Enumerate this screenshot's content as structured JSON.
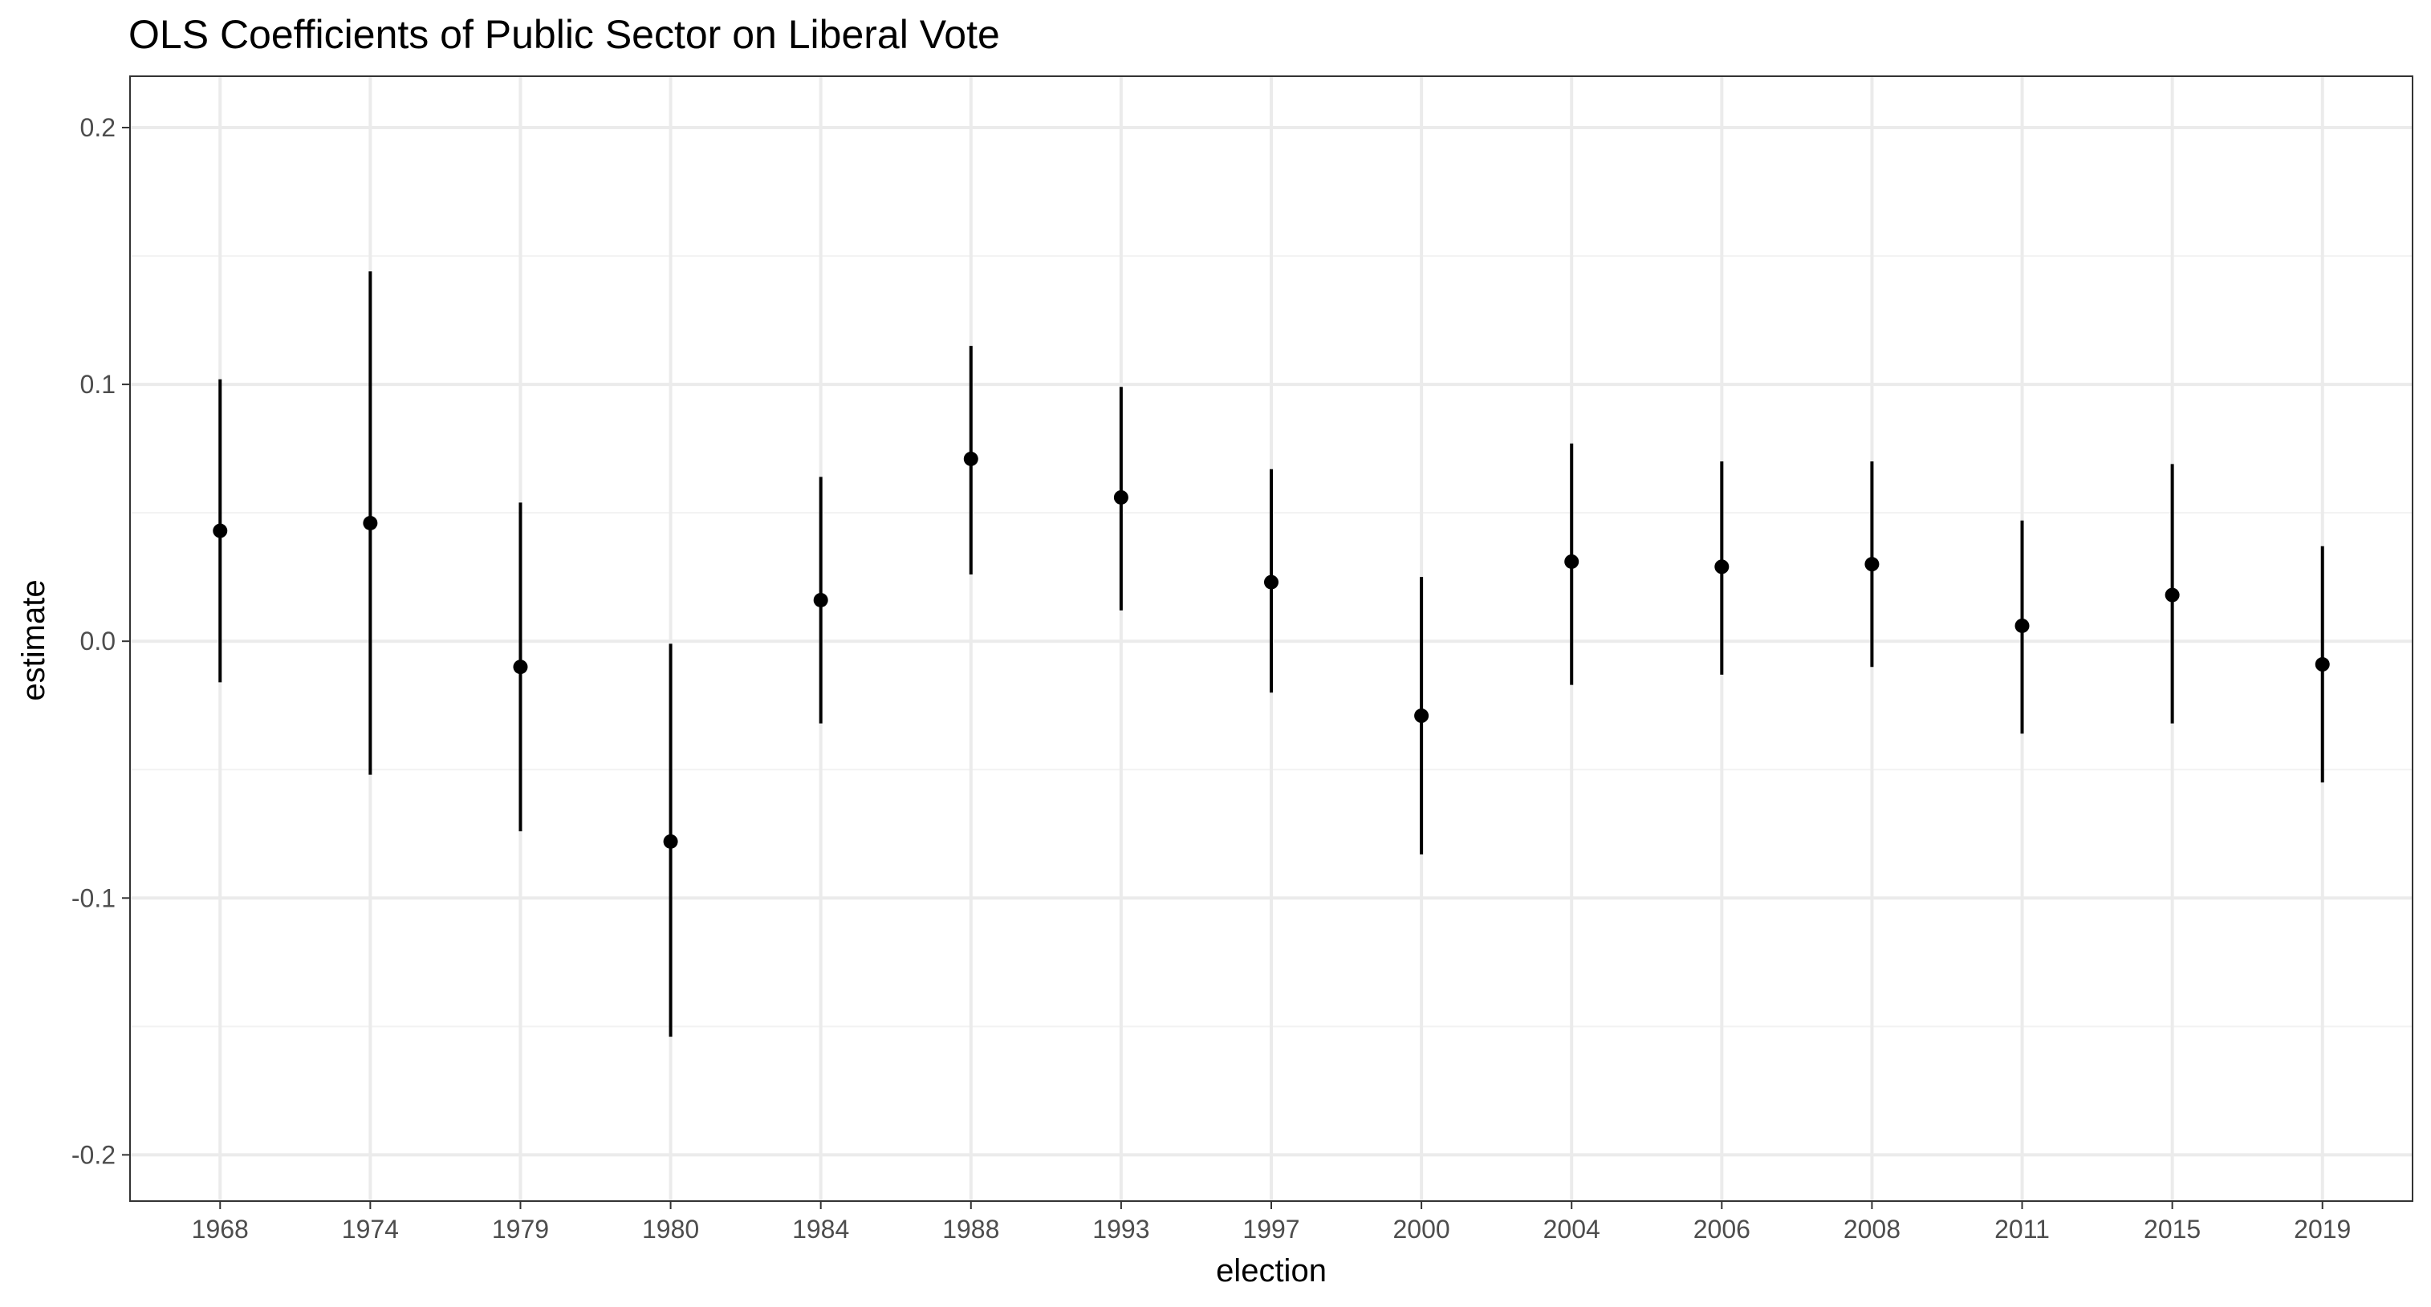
{
  "chart_data": {
    "type": "scatter",
    "title": "OLS Coefficients of Public Sector on Liberal Vote",
    "xlabel": "election",
    "ylabel": "estimate",
    "ylim": [
      -0.218,
      0.22
    ],
    "yticks": [
      -0.2,
      -0.1,
      0.0,
      0.1,
      0.2
    ],
    "ytick_labels": [
      "-0.2",
      "-0.1",
      "0.0",
      "0.1",
      "0.2"
    ],
    "grid": true,
    "categories": [
      "1968",
      "1974",
      "1979",
      "1980",
      "1984",
      "1988",
      "1993",
      "1997",
      "2000",
      "2004",
      "2006",
      "2008",
      "2011",
      "2015",
      "2019"
    ],
    "estimate": [
      0.043,
      0.046,
      -0.01,
      -0.078,
      0.016,
      0.071,
      0.056,
      0.023,
      -0.029,
      0.031,
      0.029,
      0.03,
      0.006,
      0.018,
      -0.009
    ],
    "lower": [
      -0.016,
      -0.052,
      -0.074,
      -0.154,
      -0.032,
      0.026,
      0.012,
      -0.02,
      -0.083,
      -0.017,
      -0.013,
      -0.01,
      -0.036,
      -0.032,
      -0.055
    ],
    "upper": [
      0.102,
      0.144,
      0.054,
      -0.001,
      0.064,
      0.115,
      0.099,
      0.067,
      0.025,
      0.077,
      0.07,
      0.07,
      0.047,
      0.069,
      0.037
    ]
  }
}
